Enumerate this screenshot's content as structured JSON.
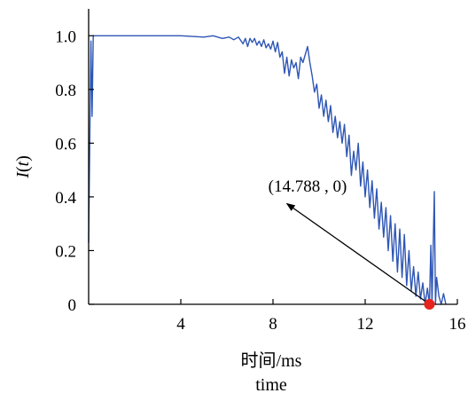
{
  "chart_data": {
    "type": "line",
    "title": "",
    "xlabel": "时间/ms",
    "xlabel_sub": "time",
    "ylabel": "I(t)",
    "ylabel_parts": {
      "base": "I",
      "open": "(",
      "var": "t",
      "close": ")"
    },
    "xlim": [
      0,
      16
    ],
    "ylim": [
      0,
      1.1
    ],
    "xticks": [
      4,
      8,
      12,
      16
    ],
    "xtick_labels": [
      "4",
      "8",
      "12",
      "16"
    ],
    "yticks": [
      0,
      0.2,
      0.4,
      0.6,
      0.8,
      1.0
    ],
    "ytick_labels": [
      "0",
      "0.2",
      "0.4",
      "0.6",
      "0.8",
      "1.0"
    ],
    "grid": false,
    "legend": "none",
    "colors": {
      "line": "#2e56b5",
      "marker": "#e8221c",
      "axis": "#000000"
    },
    "series": [
      {
        "x": [
          0.0,
          0.06,
          0.1,
          0.15,
          0.2,
          0.3,
          1.0,
          2.0,
          3.0,
          4.0,
          5.0,
          5.4,
          5.8,
          6.1,
          6.3,
          6.5,
          6.7,
          6.8,
          6.9,
          7.0,
          7.1,
          7.2,
          7.3,
          7.4,
          7.5,
          7.6,
          7.7,
          7.8,
          7.9,
          8.0,
          8.1,
          8.2,
          8.3,
          8.4,
          8.5,
          8.6,
          8.7,
          8.8,
          8.9,
          9.0,
          9.1,
          9.2,
          9.3,
          9.4,
          9.5,
          9.6,
          9.7,
          9.8,
          9.9,
          10.0,
          10.1,
          10.2,
          10.3,
          10.4,
          10.5,
          10.6,
          10.7,
          10.8,
          10.9,
          11.0,
          11.1,
          11.2,
          11.3,
          11.4,
          11.5,
          11.6,
          11.7,
          11.8,
          11.9,
          12.0,
          12.1,
          12.2,
          12.3,
          12.4,
          12.5,
          12.6,
          12.7,
          12.8,
          12.9,
          13.0,
          13.1,
          13.2,
          13.3,
          13.4,
          13.5,
          13.6,
          13.7,
          13.8,
          13.9,
          14.0,
          14.1,
          14.2,
          14.3,
          14.4,
          14.5,
          14.6,
          14.7,
          14.788,
          14.85,
          14.9,
          15.0,
          15.05,
          15.1,
          15.2,
          15.3,
          15.4,
          15.5
        ],
        "y": [
          0.23,
          0.7,
          0.98,
          0.7,
          1.0,
          1.0,
          1.0,
          1.0,
          1.0,
          1.0,
          0.995,
          1.0,
          0.99,
          0.995,
          0.985,
          0.995,
          0.97,
          0.99,
          0.96,
          0.99,
          0.975,
          0.99,
          0.965,
          0.98,
          0.96,
          0.985,
          0.955,
          0.97,
          0.95,
          0.98,
          0.94,
          0.975,
          0.92,
          0.94,
          0.86,
          0.92,
          0.85,
          0.91,
          0.88,
          0.9,
          0.84,
          0.92,
          0.9,
          0.93,
          0.96,
          0.9,
          0.85,
          0.79,
          0.82,
          0.73,
          0.78,
          0.7,
          0.76,
          0.68,
          0.74,
          0.64,
          0.7,
          0.62,
          0.68,
          0.6,
          0.67,
          0.55,
          0.63,
          0.48,
          0.57,
          0.5,
          0.6,
          0.44,
          0.53,
          0.4,
          0.5,
          0.36,
          0.46,
          0.32,
          0.43,
          0.28,
          0.38,
          0.25,
          0.36,
          0.2,
          0.33,
          0.16,
          0.3,
          0.12,
          0.28,
          0.1,
          0.26,
          0.07,
          0.2,
          0.05,
          0.14,
          0.03,
          0.12,
          0.02,
          0.08,
          0.0,
          0.06,
          0.0,
          0.22,
          0.0,
          0.42,
          0.0,
          0.1,
          0.03,
          0.0,
          0.04,
          0.0
        ]
      }
    ],
    "annotations": [
      {
        "label": "(14.788 , 0)",
        "x": 14.788,
        "y": 0,
        "text_x": 9.5,
        "text_y": 0.42,
        "arrow_tip_x": 8.6,
        "arrow_tip_y": 0.375
      }
    ]
  }
}
